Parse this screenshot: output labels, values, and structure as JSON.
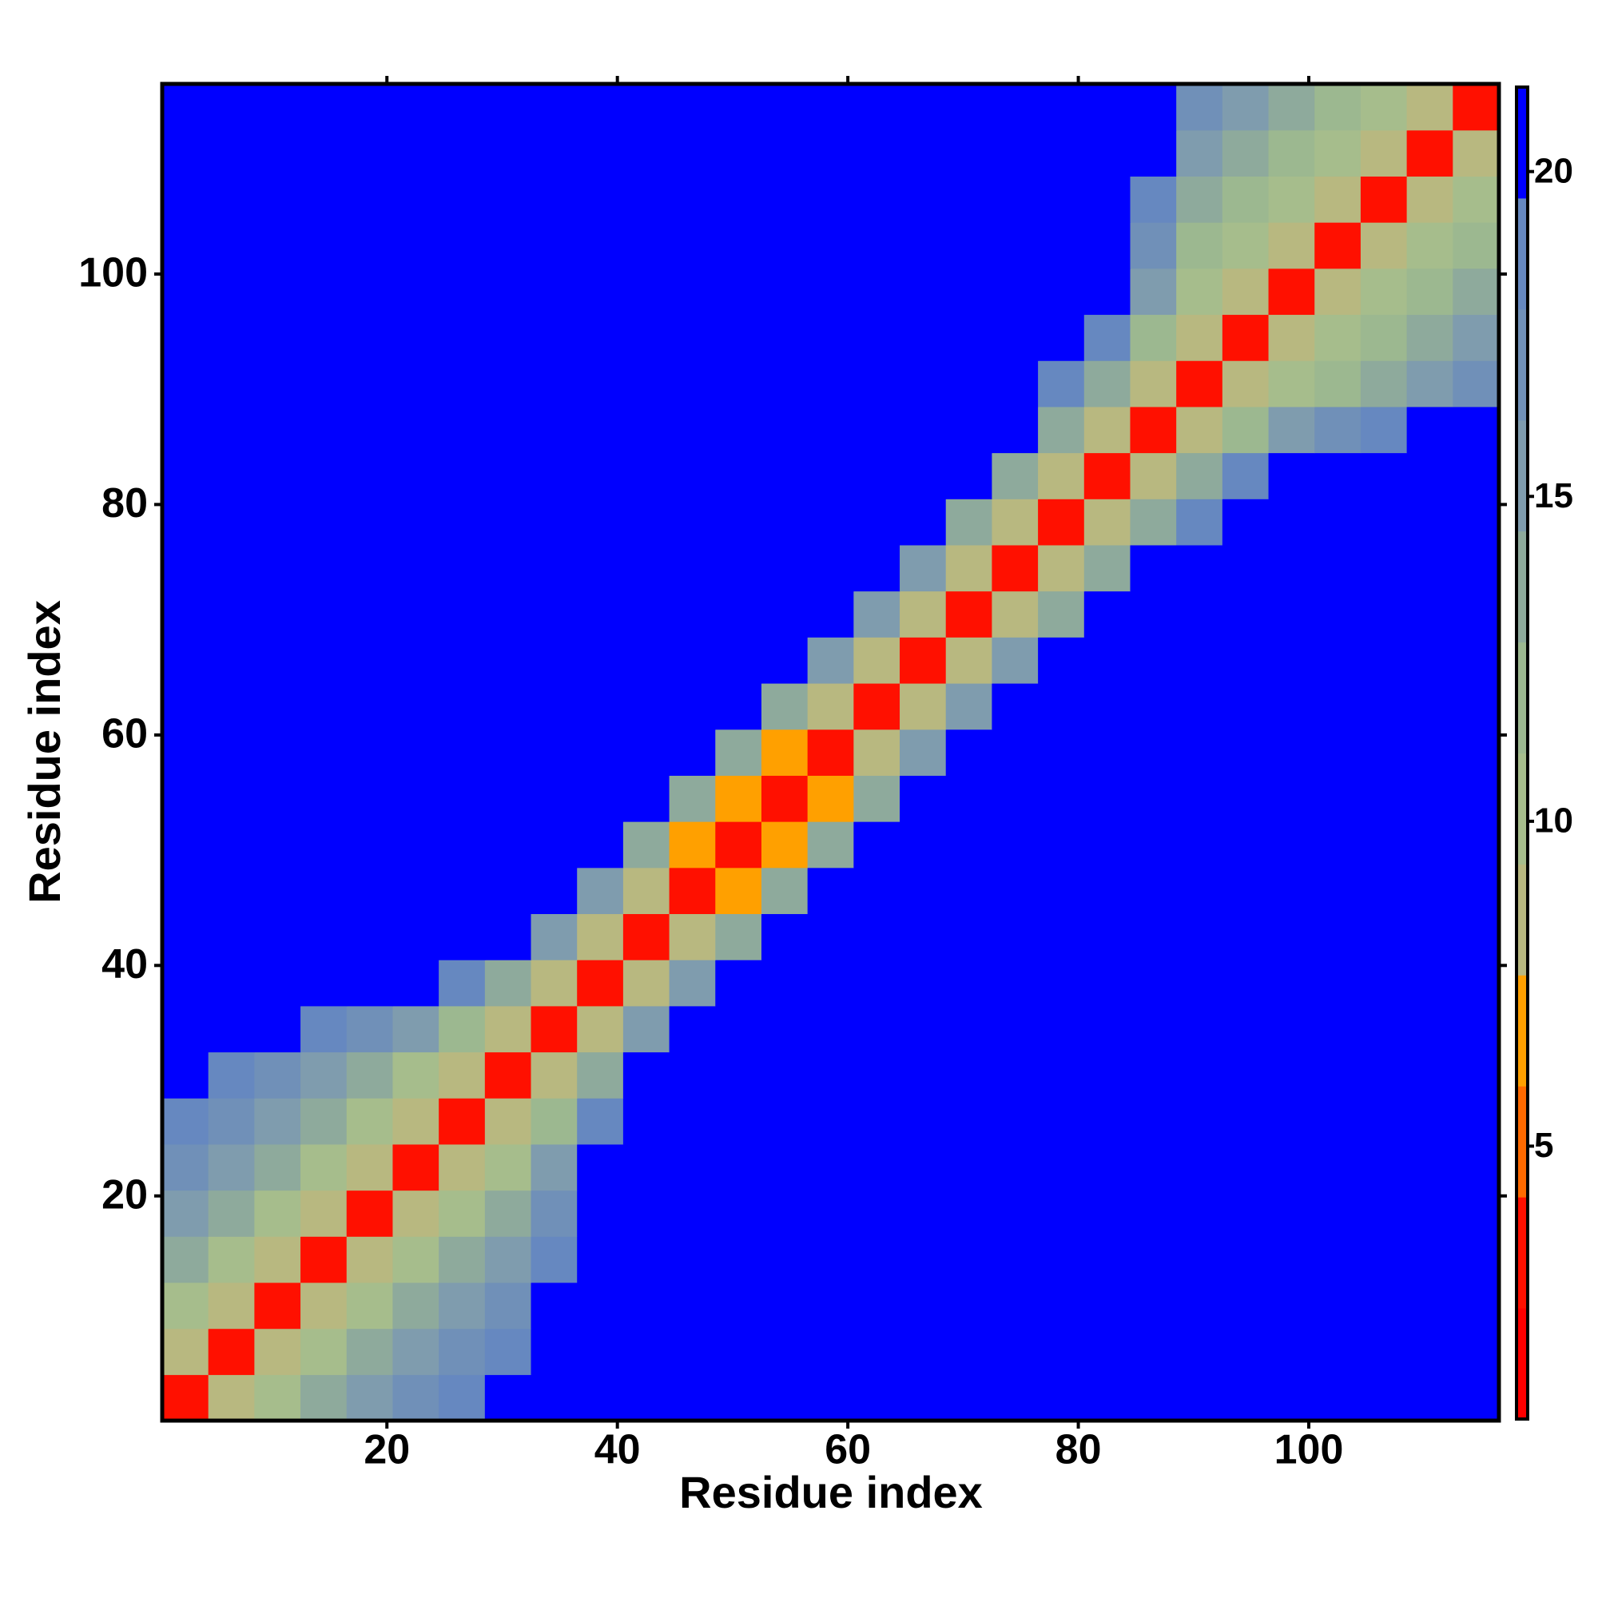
{
  "chart_data": {
    "type": "heatmap",
    "xlabel": "Residue index",
    "ylabel": "Residue index",
    "bins": [
      0.5,
      4.5,
      8.5,
      12.5,
      16.5,
      20.5,
      24.5,
      28.5,
      32.5,
      36.5,
      40.5,
      44.5,
      48.5,
      52.5,
      56.5,
      60.5,
      64.5,
      68.5,
      72.5,
      76.5,
      80.5,
      84.5,
      88.5,
      92.5,
      96.5,
      100.5,
      104.5,
      108.5,
      112.5,
      116.5
    ],
    "xlim": [
      0.5,
      116.5
    ],
    "ylim": [
      0.5,
      116.5
    ],
    "xticks": [
      20,
      40,
      60,
      80,
      100
    ],
    "yticks": [
      20,
      40,
      60,
      80,
      100
    ],
    "zlim": [
      0.8,
      21.3
    ],
    "zticks": [
      5,
      10,
      15,
      20
    ],
    "colors": [
      "#ff0000",
      "#ff1000",
      "#ff6a00",
      "#ffa000",
      "#b8b880",
      "#a6bd8c",
      "#9cb890",
      "#8eaa9c",
      "#7f9cae",
      "#7090b8",
      "#6688c0",
      "#0000ff"
    ],
    "z": [
      [
        3.8,
        8,
        11,
        13,
        15,
        17,
        18.5,
        20,
        21.3,
        21.3,
        21.3,
        21.3,
        21.3,
        21.3,
        21.3,
        21.3,
        21.3,
        21.3,
        21.3,
        21.3,
        21.3,
        21.3,
        21.3,
        21.3,
        21.3,
        21.3,
        21.3,
        21.3,
        21.3
      ],
      [
        8,
        3.8,
        8,
        11,
        13,
        15,
        17,
        19,
        21.3,
        21.3,
        21.3,
        21.3,
        21.3,
        21.3,
        21.3,
        21.3,
        21.3,
        21.3,
        21.3,
        21.3,
        21.3,
        21.3,
        21.3,
        21.3,
        21.3,
        21.3,
        21.3,
        21.3,
        21.3
      ],
      [
        11,
        8,
        3.8,
        8,
        11,
        13,
        15,
        17.5,
        20,
        21.3,
        21.3,
        21.3,
        21.3,
        21.3,
        21.3,
        21.3,
        21.3,
        21.3,
        21.3,
        21.3,
        21.3,
        21.3,
        21.3,
        21.3,
        21.3,
        21.3,
        21.3,
        21.3,
        21.3
      ],
      [
        13,
        11,
        8,
        3.8,
        8,
        11,
        13,
        15,
        19,
        21.3,
        21.3,
        21.3,
        21.3,
        21.3,
        21.3,
        21.3,
        21.3,
        21.3,
        21.3,
        21.3,
        21.3,
        21.3,
        21.3,
        21.3,
        21.3,
        21.3,
        21.3,
        21.3,
        21.3
      ],
      [
        15,
        13,
        11,
        8,
        3.8,
        8,
        11,
        13,
        17,
        21.3,
        21.3,
        21.3,
        21.3,
        21.3,
        21.3,
        21.3,
        21.3,
        21.3,
        21.3,
        21.3,
        21.3,
        21.3,
        21.3,
        21.3,
        21.3,
        21.3,
        21.3,
        21.3,
        21.3
      ],
      [
        17,
        15,
        13,
        11,
        8,
        3.8,
        8,
        11,
        15,
        21.3,
        21.3,
        21.3,
        21.3,
        21.3,
        21.3,
        21.3,
        21.3,
        21.3,
        21.3,
        21.3,
        21.3,
        21.3,
        21.3,
        21.3,
        21.3,
        21.3,
        21.3,
        21.3,
        21.3
      ],
      [
        18.5,
        17,
        15,
        13,
        11,
        8,
        3.8,
        8,
        12,
        19,
        21.3,
        21.3,
        21.3,
        21.3,
        21.3,
        21.3,
        21.3,
        21.3,
        21.3,
        21.3,
        21.3,
        21.3,
        21.3,
        21.3,
        21.3,
        21.3,
        21.3,
        21.3,
        21.3
      ],
      [
        20,
        19,
        17.5,
        15,
        13,
        11,
        8,
        3.8,
        8,
        14,
        21.3,
        21.3,
        21.3,
        21.3,
        21.3,
        21.3,
        21.3,
        21.3,
        21.3,
        21.3,
        21.3,
        21.3,
        21.3,
        21.3,
        21.3,
        21.3,
        21.3,
        21.3,
        21.3
      ],
      [
        21.3,
        21.3,
        20,
        19,
        17,
        15,
        12,
        8,
        3.8,
        9,
        15,
        21.3,
        21.3,
        21.3,
        21.3,
        21.3,
        21.3,
        21.3,
        21.3,
        21.3,
        21.3,
        21.3,
        21.3,
        21.3,
        21.3,
        21.3,
        21.3,
        21.3,
        21.3
      ],
      [
        21.3,
        21.3,
        21.3,
        21.3,
        21.3,
        21.3,
        19,
        14,
        9,
        3.8,
        9,
        15,
        21.3,
        21.3,
        21.3,
        21.3,
        21.3,
        21.3,
        21.3,
        21.3,
        21.3,
        21.3,
        21.3,
        21.3,
        21.3,
        21.3,
        21.3,
        21.3,
        21.3
      ],
      [
        21.3,
        21.3,
        21.3,
        21.3,
        21.3,
        21.3,
        21.3,
        21.3,
        15,
        9,
        3.8,
        8,
        14,
        21.3,
        21.3,
        21.3,
        21.3,
        21.3,
        21.3,
        21.3,
        21.3,
        21.3,
        21.3,
        21.3,
        21.3,
        21.3,
        21.3,
        21.3,
        21.3
      ],
      [
        21.3,
        21.3,
        21.3,
        21.3,
        21.3,
        21.3,
        21.3,
        21.3,
        21.3,
        15,
        8,
        3.8,
        7,
        13,
        21.3,
        21.3,
        21.3,
        21.3,
        21.3,
        21.3,
        21.3,
        21.3,
        21.3,
        21.3,
        21.3,
        21.3,
        21.3,
        21.3,
        21.3
      ],
      [
        21.3,
        21.3,
        21.3,
        21.3,
        21.3,
        21.3,
        21.3,
        21.3,
        21.3,
        21.3,
        14,
        7,
        3.8,
        7,
        13,
        21.3,
        21.3,
        21.3,
        21.3,
        21.3,
        21.3,
        21.3,
        21.3,
        21.3,
        21.3,
        21.3,
        21.3,
        21.3,
        21.3
      ],
      [
        21.3,
        21.3,
        21.3,
        21.3,
        21.3,
        21.3,
        21.3,
        21.3,
        21.3,
        21.3,
        21.3,
        13,
        7,
        3.8,
        7,
        14,
        21.3,
        21.3,
        21.3,
        21.3,
        21.3,
        21.3,
        21.3,
        21.3,
        21.3,
        21.3,
        21.3,
        21.3,
        21.3
      ],
      [
        21.3,
        21.3,
        21.3,
        21.3,
        21.3,
        21.3,
        21.3,
        21.3,
        21.3,
        21.3,
        21.3,
        21.3,
        13,
        7,
        3.8,
        8,
        15,
        21.3,
        21.3,
        21.3,
        21.3,
        21.3,
        21.3,
        21.3,
        21.3,
        21.3,
        21.3,
        21.3,
        21.3
      ],
      [
        21.3,
        21.3,
        21.3,
        21.3,
        21.3,
        21.3,
        21.3,
        21.3,
        21.3,
        21.3,
        21.3,
        21.3,
        21.3,
        14,
        8,
        3.8,
        9,
        15,
        21.3,
        21.3,
        21.3,
        21.3,
        21.3,
        21.3,
        21.3,
        21.3,
        21.3,
        21.3,
        21.3
      ],
      [
        21.3,
        21.3,
        21.3,
        21.3,
        21.3,
        21.3,
        21.3,
        21.3,
        21.3,
        21.3,
        21.3,
        21.3,
        21.3,
        21.3,
        15,
        9,
        3.8,
        9,
        15,
        21.3,
        21.3,
        21.3,
        21.3,
        21.3,
        21.3,
        21.3,
        21.3,
        21.3,
        21.3
      ],
      [
        21.3,
        21.3,
        21.3,
        21.3,
        21.3,
        21.3,
        21.3,
        21.3,
        21.3,
        21.3,
        21.3,
        21.3,
        21.3,
        21.3,
        21.3,
        15,
        9,
        3.8,
        9,
        14,
        21.3,
        21.3,
        21.3,
        21.3,
        21.3,
        21.3,
        21.3,
        21.3,
        21.3
      ],
      [
        21.3,
        21.3,
        21.3,
        21.3,
        21.3,
        21.3,
        21.3,
        21.3,
        21.3,
        21.3,
        21.3,
        21.3,
        21.3,
        21.3,
        21.3,
        21.3,
        15,
        9,
        3.8,
        9,
        14,
        21.3,
        21.3,
        21.3,
        21.3,
        21.3,
        21.3,
        21.3,
        21.3
      ],
      [
        21.3,
        21.3,
        21.3,
        21.3,
        21.3,
        21.3,
        21.3,
        21.3,
        21.3,
        21.3,
        21.3,
        21.3,
        21.3,
        21.3,
        21.3,
        21.3,
        21.3,
        14,
        9,
        3.8,
        9,
        14,
        19,
        21.3,
        21.3,
        21.3,
        21.3,
        21.3,
        21.3
      ],
      [
        21.3,
        21.3,
        21.3,
        21.3,
        21.3,
        21.3,
        21.3,
        21.3,
        21.3,
        21.3,
        21.3,
        21.3,
        21.3,
        21.3,
        21.3,
        21.3,
        21.3,
        21.3,
        14,
        9,
        3.8,
        8,
        14,
        18,
        20,
        21.3,
        21.3,
        21.3,
        21.3
      ],
      [
        21.3,
        21.3,
        21.3,
        21.3,
        21.3,
        21.3,
        21.3,
        21.3,
        21.3,
        21.3,
        21.3,
        21.3,
        21.3,
        21.3,
        21.3,
        21.3,
        21.3,
        21.3,
        21.3,
        14,
        8,
        3.8,
        8,
        12,
        15,
        17,
        19,
        21.3,
        21.3
      ],
      [
        21.3,
        21.3,
        21.3,
        21.3,
        21.3,
        21.3,
        21.3,
        21.3,
        21.3,
        21.3,
        21.3,
        21.3,
        21.3,
        21.3,
        21.3,
        21.3,
        21.3,
        21.3,
        21.3,
        19,
        14,
        8,
        3.8,
        8,
        10.5,
        12.5,
        14,
        16,
        17.5
      ],
      [
        21.3,
        21.3,
        21.3,
        21.3,
        21.3,
        21.3,
        21.3,
        21.3,
        21.3,
        21.3,
        21.3,
        21.3,
        21.3,
        21.3,
        21.3,
        21.3,
        21.3,
        21.3,
        21.3,
        21.3,
        18,
        12,
        8,
        3.8,
        8,
        10.5,
        12.5,
        14,
        16
      ],
      [
        21.3,
        21.3,
        21.3,
        21.3,
        21.3,
        21.3,
        21.3,
        21.3,
        21.3,
        21.3,
        21.3,
        21.3,
        21.3,
        21.3,
        21.3,
        21.3,
        21.3,
        21.3,
        21.3,
        21.3,
        20,
        15,
        10.5,
        8,
        3.8,
        8,
        10.5,
        12.5,
        14
      ],
      [
        21.3,
        21.3,
        21.3,
        21.3,
        21.3,
        21.3,
        21.3,
        21.3,
        21.3,
        21.3,
        21.3,
        21.3,
        21.3,
        21.3,
        21.3,
        21.3,
        21.3,
        21.3,
        21.3,
        21.3,
        21.3,
        17,
        12.5,
        10.5,
        8,
        3.8,
        8,
        10.5,
        12.5
      ],
      [
        21.3,
        21.3,
        21.3,
        21.3,
        21.3,
        21.3,
        21.3,
        21.3,
        21.3,
        21.3,
        21.3,
        21.3,
        21.3,
        21.3,
        21.3,
        21.3,
        21.3,
        21.3,
        21.3,
        21.3,
        21.3,
        19,
        14,
        12.5,
        10.5,
        8,
        3.8,
        8,
        10.5
      ],
      [
        21.3,
        21.3,
        21.3,
        21.3,
        21.3,
        21.3,
        21.3,
        21.3,
        21.3,
        21.3,
        21.3,
        21.3,
        21.3,
        21.3,
        21.3,
        21.3,
        21.3,
        21.3,
        21.3,
        21.3,
        21.3,
        21.3,
        16,
        14,
        12.5,
        10.5,
        8,
        3.8,
        8
      ],
      [
        21.3,
        21.3,
        21.3,
        21.3,
        21.3,
        21.3,
        21.3,
        21.3,
        21.3,
        21.3,
        21.3,
        21.3,
        21.3,
        21.3,
        21.3,
        21.3,
        21.3,
        21.3,
        21.3,
        21.3,
        21.3,
        21.3,
        17.5,
        16,
        14,
        12.5,
        10.5,
        8,
        3.8
      ]
    ]
  }
}
